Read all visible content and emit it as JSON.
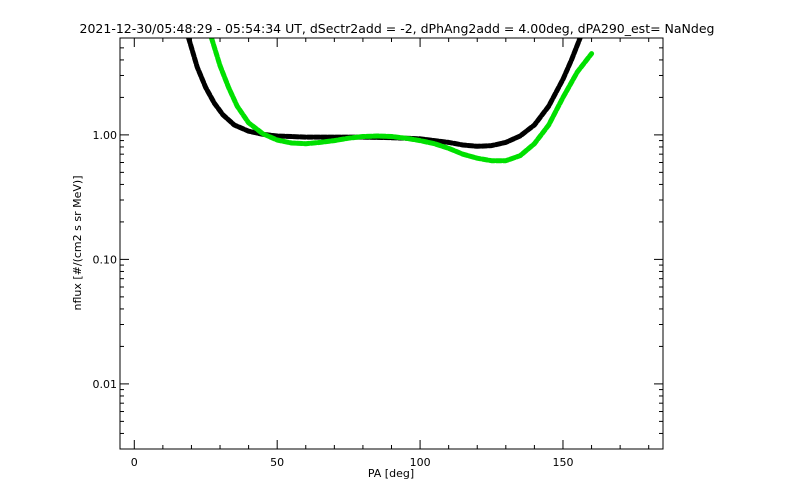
{
  "chart_data": {
    "type": "line",
    "title": "2021-12-30/05:48:29 - 05:54:34 UT, dSectr2add = -2, dPhAng2add = 4.00deg, dPA290_est=   NaNdeg",
    "xlabel": "PA [deg]",
    "ylabel": "nflux [#/(cm2 s sr MeV)]",
    "xlim": [
      -5,
      185
    ],
    "ylim": [
      0.003,
      6
    ],
    "yscale": "log",
    "grid": false,
    "x_ticks": [
      0,
      50,
      100,
      150
    ],
    "x_tick_labels": [
      "0",
      "50",
      "100",
      "150"
    ],
    "y_ticks": [
      0.01,
      0.1,
      1.0
    ],
    "y_tick_labels": [
      "0.01",
      "0.10",
      "1.00"
    ],
    "series": [
      {
        "color": "#000000",
        "x": [
          19,
          22,
          25,
          28,
          31,
          35,
          40,
          45,
          50,
          60,
          70,
          80,
          90,
          100,
          110,
          115,
          120,
          125,
          130,
          135,
          140,
          145,
          150,
          153,
          156
        ],
        "y": [
          6.0,
          3.5,
          2.4,
          1.8,
          1.45,
          1.2,
          1.07,
          1.01,
          0.98,
          0.96,
          0.96,
          0.96,
          0.95,
          0.93,
          0.87,
          0.83,
          0.81,
          0.82,
          0.87,
          0.98,
          1.2,
          1.7,
          2.8,
          4.0,
          6.0
        ]
      },
      {
        "color": "#00e000",
        "x": [
          27,
          30,
          33,
          36,
          40,
          45,
          50,
          55,
          60,
          65,
          70,
          75,
          80,
          85,
          90,
          95,
          100,
          105,
          110,
          115,
          120,
          125,
          130,
          135,
          140,
          145,
          150,
          155,
          160
        ],
        "y": [
          6.0,
          3.6,
          2.4,
          1.7,
          1.25,
          1.02,
          0.91,
          0.86,
          0.85,
          0.87,
          0.9,
          0.94,
          0.97,
          0.98,
          0.97,
          0.94,
          0.9,
          0.85,
          0.78,
          0.7,
          0.65,
          0.62,
          0.62,
          0.68,
          0.85,
          1.2,
          2.0,
          3.2,
          4.5
        ]
      }
    ]
  }
}
